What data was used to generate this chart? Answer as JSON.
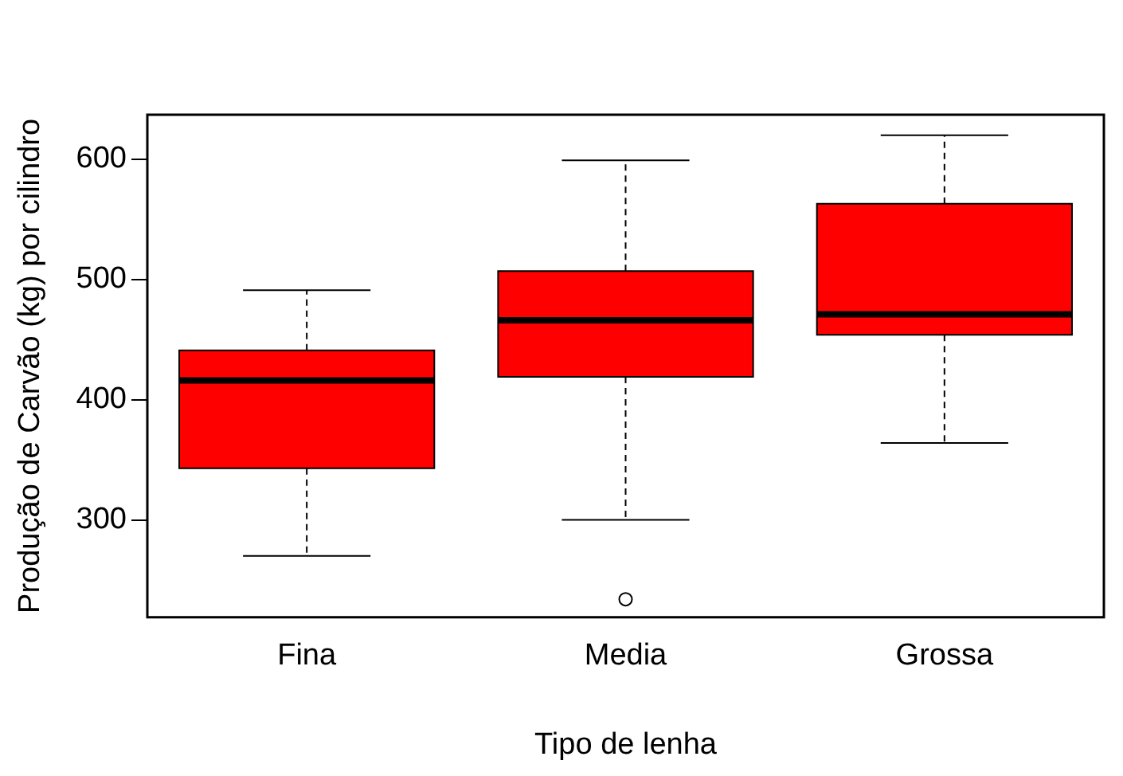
{
  "chart_data": {
    "type": "box",
    "xlabel": "Tipo de lenha",
    "ylabel": "Produção de Carvão (kg) por cilindro",
    "categories": [
      "Fina",
      "Media",
      "Grossa"
    ],
    "color": "#ff0000",
    "ylim": [
      219,
      637
    ],
    "yticks": [
      300,
      400,
      500,
      600
    ],
    "grid": false,
    "legend": false,
    "boxes": [
      {
        "low": 270,
        "q1": 343,
        "median": 416,
        "q3": 441,
        "high": 491
      },
      {
        "low": 300,
        "q1": 419,
        "median": 466,
        "q3": 507,
        "high": 599,
        "outliers": [
          234
        ]
      },
      {
        "low": 364,
        "q1": 454,
        "median": 471,
        "q3": 563,
        "high": 620
      }
    ]
  }
}
